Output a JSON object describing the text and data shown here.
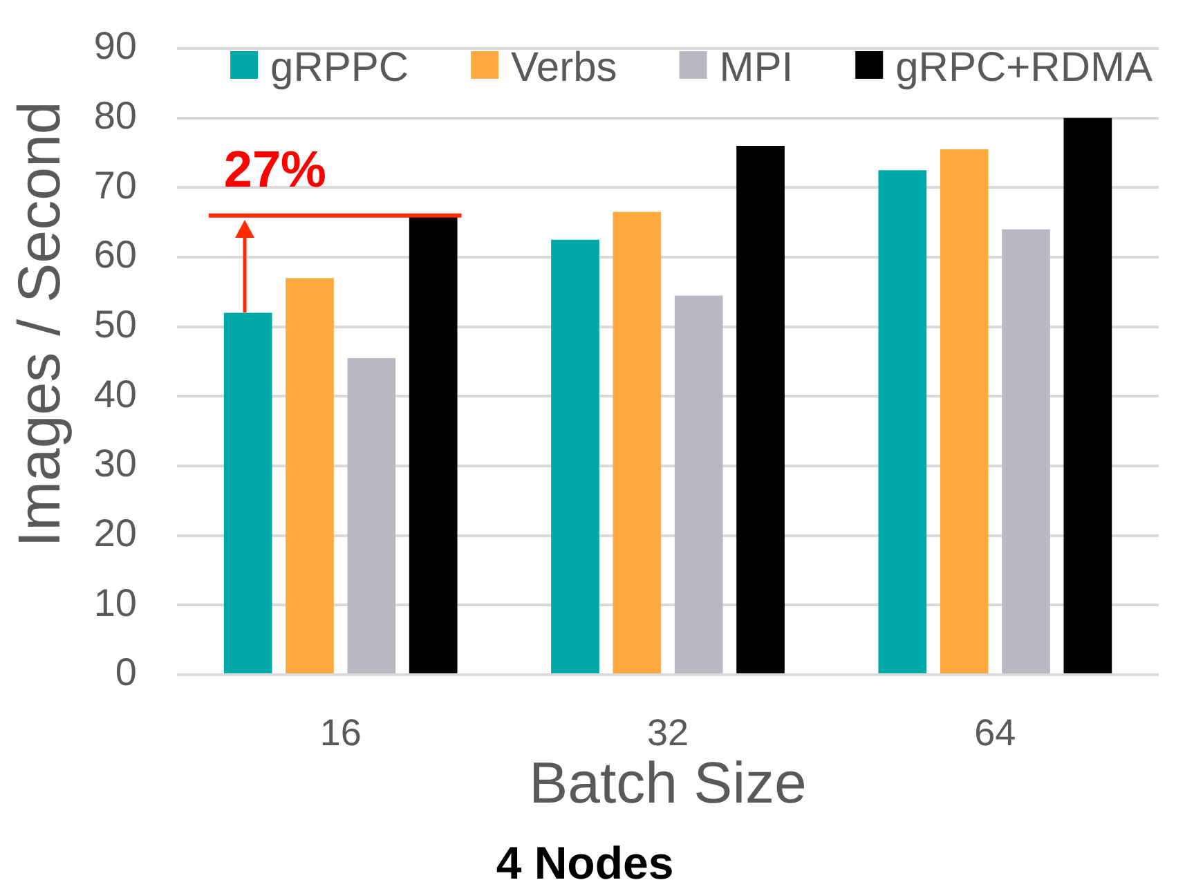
{
  "chart_data": {
    "type": "bar",
    "title": "4 Nodes",
    "xlabel": "Batch Size",
    "ylabel": "Images / Second",
    "categories": [
      "16",
      "32",
      "64"
    ],
    "series": [
      {
        "name": "gRPPC",
        "color": "#00a9a9",
        "values": [
          52,
          62.5,
          72.5
        ]
      },
      {
        "name": "Verbs",
        "color": "#ffa940",
        "values": [
          57,
          66.5,
          75.5
        ]
      },
      {
        "name": "MPI",
        "color": "#b9b9c4",
        "values": [
          45.5,
          54.5,
          64
        ]
      },
      {
        "name": "gRPC+RDMA",
        "color": "#000000",
        "values": [
          66,
          76,
          80
        ]
      }
    ],
    "ylim": [
      0,
      90
    ],
    "yticks": [
      0,
      10,
      20,
      30,
      40,
      50,
      60,
      70,
      80,
      90
    ],
    "grid": "y",
    "legend": "top",
    "ref_lines": [
      {
        "axis": "y",
        "value": 66,
        "color": "#ff2a00"
      }
    ],
    "annotations": [
      {
        "text": "27%",
        "x": "16",
        "y": 66
      }
    ]
  }
}
